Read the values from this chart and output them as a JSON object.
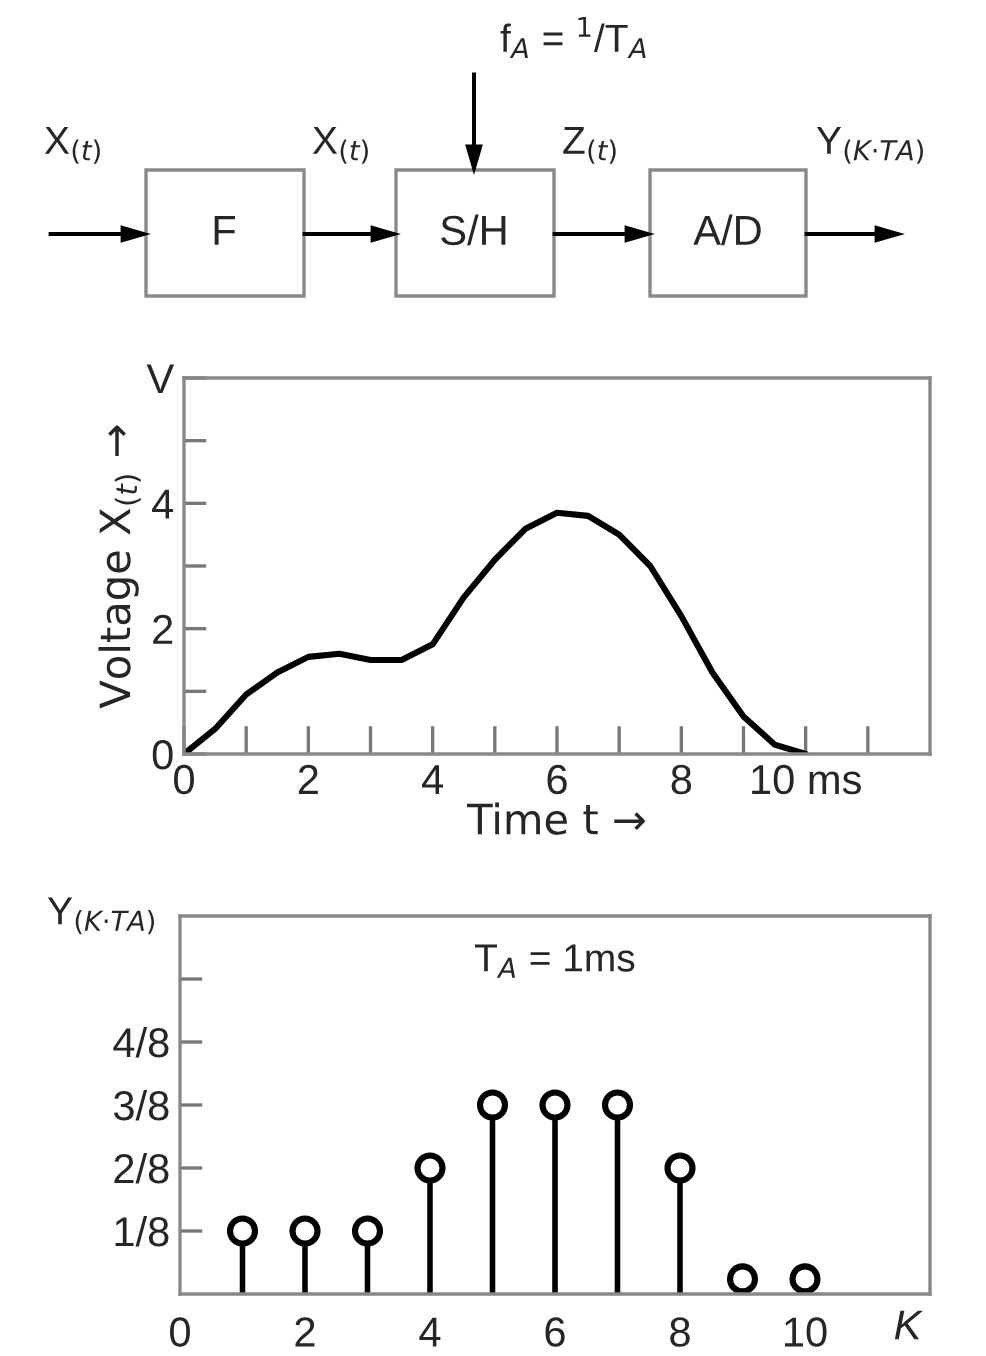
{
  "chart_data": [
    {
      "type": "other",
      "annotations": [
        "X$_{(t)}$",
        "F",
        "X$_{(t)}$",
        "S/H",
        "f$_{A}$ = $^{1}$/T$_{A}$",
        "Z$_{(t)}$",
        "A/D",
        "Y$_{(K·TA)}$"
      ]
    },
    {
      "type": "line",
      "xlabel": "Time t →",
      "ylabel": "Voltage X$_{(t)}$ →",
      "x": [
        0,
        0.5,
        1,
        1.5,
        2,
        2.5,
        3,
        3.5,
        4,
        4.5,
        5,
        5.5,
        6,
        6.5,
        7,
        7.5,
        8,
        8.5,
        9,
        9.5,
        10
      ],
      "series": [
        {
          "color": "#000000",
          "values": [
            0,
            0.4,
            0.95,
            1.3,
            1.55,
            1.6,
            1.5,
            1.5,
            1.75,
            2.5,
            3.1,
            3.6,
            3.85,
            3.8,
            3.5,
            3.0,
            2.2,
            1.3,
            0.6,
            0.15,
            0
          ]
        }
      ],
      "xlim": [
        0,
        12
      ],
      "ylim": [
        0,
        6
      ],
      "xticks": [
        0,
        {
          "value": 1,
          "label": null
        },
        2,
        {
          "value": 3,
          "label": null
        },
        4,
        {
          "value": 5,
          "label": null
        },
        6,
        {
          "value": 7,
          "label": null
        },
        8,
        {
          "value": 9,
          "label": null
        },
        {
          "value": 10,
          "label": "10 ms"
        },
        {
          "value": 11,
          "label": null
        }
      ],
      "yticks": [
        0,
        {
          "value": 1,
          "label": null
        },
        2,
        {
          "value": 3,
          "label": null
        },
        4,
        {
          "value": 5,
          "label": null
        },
        {
          "value": 6,
          "label": "V"
        }
      ],
      "grid": false,
      "legend": false,
      "marker": "none",
      "line_style": "solid"
    },
    {
      "type": "lollipop",
      "xlabel": "K",
      "ylabel": "Y$_{(K·TA)}$",
      "x": [
        1,
        2,
        3,
        4,
        5,
        6,
        7,
        8,
        9,
        10
      ],
      "series": [
        {
          "color": "#000000",
          "values": [
            0.125,
            0.125,
            0.125,
            0.25,
            0.375,
            0.375,
            0.375,
            0.25,
            0.03,
            0.03
          ]
        }
      ],
      "xlim": [
        0,
        12
      ],
      "ylim": [
        0,
        0.75
      ],
      "xticks": [
        0,
        2,
        4,
        6,
        8,
        10
      ],
      "yticks": [
        {
          "value": 0.125,
          "label": "1/8"
        },
        {
          "value": 0.25,
          "label": "2/8"
        },
        {
          "value": 0.375,
          "label": "3/8"
        },
        {
          "value": 0.5,
          "label": "4/8"
        },
        {
          "value": 0.625,
          "label": null
        }
      ],
      "annotations": [
        "T$_{A}$ = 1ms"
      ],
      "grid": false,
      "legend": false,
      "marker": "circle"
    }
  ]
}
